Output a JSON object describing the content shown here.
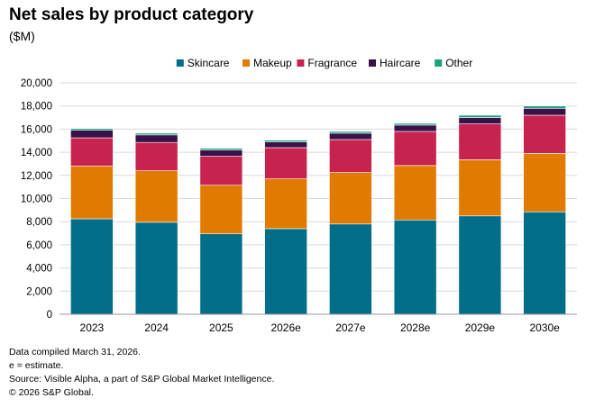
{
  "chart_data": {
    "type": "bar",
    "stacked": true,
    "title": "Net sales by product category",
    "subtitle": "($M)",
    "xlabel": "",
    "ylabel": "",
    "ylim": [
      0,
      20000
    ],
    "yticks": [
      0,
      2000,
      4000,
      6000,
      8000,
      10000,
      12000,
      14000,
      16000,
      18000,
      20000
    ],
    "ytick_labels": [
      "0",
      "2,000",
      "4,000",
      "6,000",
      "8,000",
      "10,000",
      "12,000",
      "14,000",
      "16,000",
      "18,000",
      "20,000"
    ],
    "grid": true,
    "legend_position": "top-center",
    "categories": [
      "2023",
      "2024",
      "2025",
      "2026e",
      "2027e",
      "2028e",
      "2029e",
      "2030e"
    ],
    "series": [
      {
        "name": "Skincare",
        "color": "#006d89",
        "values": [
          8250,
          7950,
          6950,
          7400,
          7800,
          8150,
          8500,
          8850
        ]
      },
      {
        "name": "Makeup",
        "color": "#e07b00",
        "values": [
          4550,
          4450,
          4200,
          4300,
          4450,
          4700,
          4850,
          5050
        ]
      },
      {
        "name": "Fragrance",
        "color": "#c8224f",
        "values": [
          2450,
          2450,
          2500,
          2700,
          2850,
          2950,
          3100,
          3300
        ]
      },
      {
        "name": "Haircare",
        "color": "#3a1149",
        "values": [
          650,
          650,
          550,
          500,
          550,
          550,
          550,
          600
        ]
      },
      {
        "name": "Other",
        "color": "#1aa37a",
        "values": [
          150,
          150,
          150,
          150,
          150,
          150,
          200,
          200
        ]
      }
    ]
  },
  "footnotes": [
    "Data compiled March 31, 2026.",
    "e = estimate.",
    "Source: Visible Alpha, a part of S&P Global Market Intelligence.",
    "© 2026 S&P Global."
  ],
  "colors": {
    "gridline": "#d9d9d9",
    "axis": "#999999"
  }
}
